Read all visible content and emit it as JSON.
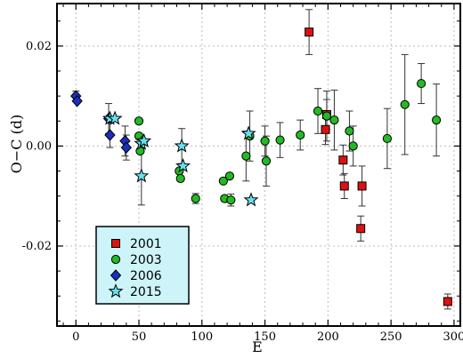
{
  "chart_data": {
    "type": "scatter",
    "title": "",
    "xlabel": "E",
    "ylabel": "O−C (d)",
    "xlim": [
      -15,
      305
    ],
    "ylim": [
      -0.036,
      0.0285
    ],
    "x_ticks": [
      0,
      50,
      100,
      150,
      200,
      250,
      300
    ],
    "x_tick_labels": [
      "0",
      "50",
      "100",
      "150",
      "200",
      "250",
      "300"
    ],
    "y_ticks": [
      -0.02,
      0.0,
      0.02
    ],
    "y_tick_labels": [
      "-0.02",
      "0.00",
      "0.02"
    ],
    "grid": true,
    "legend_position": "lower-left",
    "series": [
      {
        "name": "2001",
        "marker": "square",
        "color": "#dd1111",
        "points": [
          {
            "x": 185,
            "y": 0.0228,
            "err": 0.0045
          },
          {
            "x": 198,
            "y": 0.0033,
            "err": 0.003
          },
          {
            "x": 199,
            "y": 0.0063,
            "err": 0.003
          },
          {
            "x": 212,
            "y": -0.0028,
            "err": 0.003
          },
          {
            "x": 213,
            "y": -0.008,
            "err": 0.0025
          },
          {
            "x": 226,
            "y": -0.0165,
            "err": 0.0025
          },
          {
            "x": 227,
            "y": -0.008,
            "err": 0.004
          },
          {
            "x": 295,
            "y": -0.0311,
            "err": 0.0015
          }
        ]
      },
      {
        "name": "2003",
        "marker": "circle",
        "color": "#22bb22",
        "points": [
          {
            "x": 50,
            "y": 0.005,
            "err": 0.0
          },
          {
            "x": 50,
            "y": 0.002,
            "err": 0.0
          },
          {
            "x": 51,
            "y": -0.001,
            "err": 0.0
          },
          {
            "x": 82,
            "y": -0.005,
            "err": 0.0
          },
          {
            "x": 83,
            "y": -0.0065,
            "err": 0.0
          },
          {
            "x": 95,
            "y": -0.0105,
            "err": 0.001
          },
          {
            "x": 117,
            "y": -0.007,
            "err": 0.0
          },
          {
            "x": 118,
            "y": -0.0105,
            "err": 0.0
          },
          {
            "x": 122,
            "y": -0.006,
            "err": 0.0
          },
          {
            "x": 123,
            "y": -0.0108,
            "err": 0.0012
          },
          {
            "x": 135,
            "y": -0.002,
            "err": 0.005
          },
          {
            "x": 138,
            "y": 0.002,
            "err": 0.005
          },
          {
            "x": 150,
            "y": 0.001,
            "err": 0.003
          },
          {
            "x": 151,
            "y": -0.003,
            "err": 0.005
          },
          {
            "x": 162,
            "y": 0.0012,
            "err": 0.0035
          },
          {
            "x": 178,
            "y": 0.0022,
            "err": 0.003
          },
          {
            "x": 192,
            "y": 0.007,
            "err": 0.0045
          },
          {
            "x": 199,
            "y": 0.006,
            "err": 0.005
          },
          {
            "x": 205,
            "y": 0.0052,
            "err": 0.006
          },
          {
            "x": 217,
            "y": 0.003,
            "err": 0.004
          },
          {
            "x": 220,
            "y": 0.0,
            "err": 0.004
          },
          {
            "x": 247,
            "y": 0.0015,
            "err": 0.006
          },
          {
            "x": 261,
            "y": 0.0083,
            "err": 0.01
          },
          {
            "x": 274,
            "y": 0.0125,
            "err": 0.004
          },
          {
            "x": 286,
            "y": 0.0052,
            "err": 0.0072
          }
        ]
      },
      {
        "name": "2006",
        "marker": "diamond",
        "color": "#1a2fbf",
        "points": [
          {
            "x": 0,
            "y": 0.01,
            "err": 0.001
          },
          {
            "x": 1,
            "y": 0.009,
            "err": 0.0
          },
          {
            "x": 26,
            "y": 0.0055,
            "err": 0.003
          },
          {
            "x": 27,
            "y": 0.0022,
            "err": 0.0025
          },
          {
            "x": 39,
            "y": 0.001,
            "err": 0.003
          },
          {
            "x": 40,
            "y": -0.0003,
            "err": 0.0025
          }
        ]
      },
      {
        "name": "2015",
        "marker": "star",
        "color": "#66e0f0",
        "points": [
          {
            "x": 27,
            "y": 0.0055,
            "err": 0.0
          },
          {
            "x": 31,
            "y": 0.0055,
            "err": 0.0
          },
          {
            "x": 52,
            "y": 0.0005,
            "err": 0.0
          },
          {
            "x": 54,
            "y": 0.001,
            "err": 0.0
          },
          {
            "x": 52,
            "y": -0.006,
            "err": 0.0058
          },
          {
            "x": 84,
            "y": 0.0,
            "err": 0.0035
          },
          {
            "x": 85,
            "y": -0.004,
            "err": 0.0
          },
          {
            "x": 137,
            "y": 0.0025,
            "err": 0.0
          },
          {
            "x": 139,
            "y": -0.0108,
            "err": 0.0
          }
        ]
      }
    ]
  }
}
